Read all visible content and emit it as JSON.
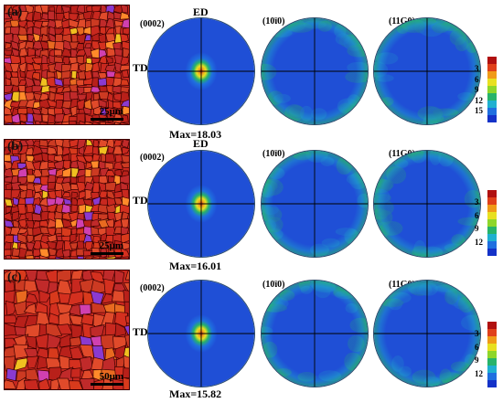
{
  "colors": {
    "grain_red": "#c8281f",
    "grain_boundary": "#3a0000",
    "pf_background": "#1f4fd6",
    "pf_rim": "#27b36a",
    "pf_core": "#d81a14"
  },
  "axis_labels": {
    "ed": "ED",
    "td": "TD"
  },
  "pole_figure_labels": [
    "(0002)",
    "(10ī0)",
    "(11Ģ0)"
  ],
  "rows": [
    {
      "panel_letter": "(a)",
      "scale_label": "25μm",
      "max_label": "Max=18.03",
      "legend_ticks": [
        "3",
        "6",
        "9",
        "12",
        "15"
      ]
    },
    {
      "panel_letter": "(b)",
      "scale_label": "25μm",
      "max_label": "Max=16.01",
      "legend_ticks": [
        "3",
        "6",
        "9",
        "12"
      ]
    },
    {
      "panel_letter": "(c)",
      "scale_label": "50μm",
      "max_label": "Max=15.82",
      "legend_ticks": [
        "3",
        "6",
        "9",
        "12"
      ]
    }
  ],
  "legend_colors": [
    "#1432c8",
    "#1f6fe0",
    "#1fb0d0",
    "#27b36a",
    "#8ed62a",
    "#e8e020",
    "#f09a18",
    "#e0401a",
    "#b01010"
  ]
}
